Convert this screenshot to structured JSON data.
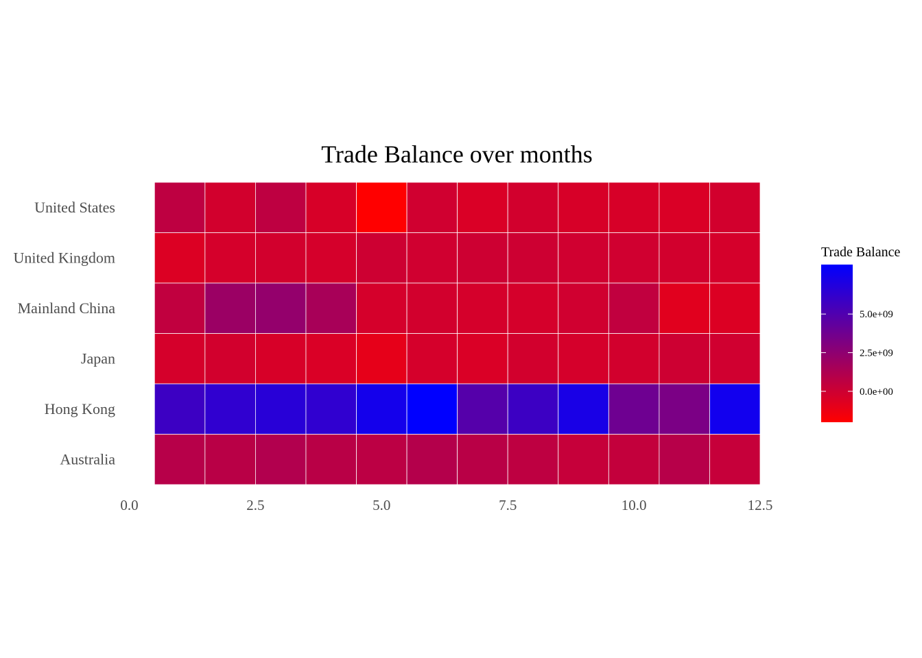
{
  "chart_data": {
    "type": "heatmap",
    "title": "Trade Balance over months",
    "xlabel": "",
    "ylabel": "",
    "x": [
      1,
      2,
      3,
      4,
      5,
      6,
      7,
      8,
      9,
      10,
      11,
      12
    ],
    "xlim": [
      0,
      12.5
    ],
    "x_ticks": [
      "0.0",
      "2.5",
      "5.0",
      "7.5",
      "10.0",
      "12.5"
    ],
    "x_tick_values": [
      0,
      2.5,
      5.0,
      7.5,
      10.0,
      12.5
    ],
    "rows": [
      "United States",
      "United Kingdom",
      "Mainland China",
      "Japan",
      "Hong Kong",
      "Australia"
    ],
    "values": [
      [
        600000000.0,
        -200000000.0,
        600000000.0,
        -400000000.0,
        -2000000000.0,
        -100000000.0,
        -500000000.0,
        -200000000.0,
        -400000000.0,
        -400000000.0,
        -500000000.0,
        -200000000.0
      ],
      [
        -600000000.0,
        -300000000.0,
        -200000000.0,
        -300000000.0,
        0.0,
        -100000000.0,
        0.0,
        0.0,
        -100000000.0,
        -100000000.0,
        -200000000.0,
        -300000000.0
      ],
      [
        500000000.0,
        2000000000.0,
        2300000000.0,
        1500000000.0,
        -300000000.0,
        -200000000.0,
        -300000000.0,
        -300000000.0,
        -100000000.0,
        500000000.0,
        -800000000.0,
        -600000000.0
      ],
      [
        -300000000.0,
        -200000000.0,
        -400000000.0,
        -500000000.0,
        -1000000000.0,
        -300000000.0,
        -500000000.0,
        -200000000.0,
        -300000000.0,
        -200000000.0,
        0.0,
        -100000000.0
      ],
      [
        5800000000.0,
        6300000000.0,
        6600000000.0,
        6300000000.0,
        7400000000.0,
        8200000000.0,
        4800000000.0,
        5800000000.0,
        7200000000.0,
        3800000000.0,
        3300000000.0,
        7500000000.0
      ],
      [
        900000000.0,
        800000000.0,
        1100000000.0,
        800000000.0,
        700000000.0,
        1000000000.0,
        800000000.0,
        600000000.0,
        300000000.0,
        400000000.0,
        900000000.0,
        300000000.0
      ]
    ],
    "legend": {
      "title": "Trade Balance",
      "ticks": [
        "0.0e+00",
        "2.5e+09",
        "5.0e+09"
      ],
      "tick_values": [
        0,
        2500000000.0,
        5000000000.0
      ],
      "range": [
        -2000000000.0,
        8200000000.0
      ],
      "placement": "right",
      "low_color": "#ff0000",
      "high_color": "#0000ff"
    },
    "grid": false
  }
}
